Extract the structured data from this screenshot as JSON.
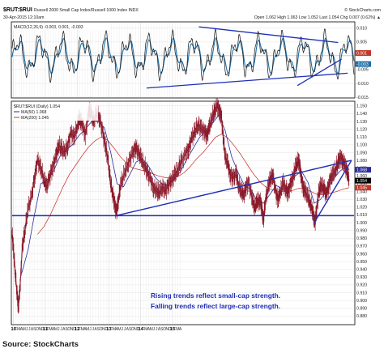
{
  "header": {
    "symbol": "$RUT:$RUI",
    "description": "Russell 2000 Small Cap Index/Russell 1000 Index  INDX",
    "date": "30-Apr-2015 12:10am",
    "brand": "© StockCharts.com",
    "stats": "Open 1.062  High 1.063  Low 1.052  Last 1.054  Chg 0.007 (0.62%) ▲"
  },
  "macd": {
    "legend": "MACD(12,26,9) -0.003, 0.001, -0.003",
    "ylim": [
      -0.015,
      0.012
    ],
    "ticks": [
      {
        "v": 0.01,
        "label": "0.010"
      },
      {
        "v": 0.005,
        "label": "0.005"
      },
      {
        "v": 0.001,
        "label": "0.001"
      },
      {
        "v": -0.005,
        "label": "-0.005"
      },
      {
        "v": -0.01,
        "label": "-0.010"
      },
      {
        "v": -0.015,
        "label": "-0.015"
      }
    ],
    "flags": [
      {
        "v": 0.001,
        "label": "0.001",
        "color": "#c0392b"
      },
      {
        "v": -0.003,
        "label": "-0.003",
        "color": "#1e6fa8"
      }
    ],
    "trendlines": [
      {
        "x1": 5.87,
        "y1": 0.0105,
        "x2": 10.25,
        "y2": 0.0048
      },
      {
        "x1": 4.23,
        "y1": -0.0117,
        "x2": 10.55,
        "y2": -0.0063
      },
      {
        "x1": 8.97,
        "y1": -0.0108,
        "x2": 10.36,
        "y2": -0.0012
      }
    ]
  },
  "price": {
    "legend": "$RUT:$RUI (Daily) 1.054",
    "ma50_legend": "MA(50) 1.068",
    "ma200_legend": "MA(200) 1.045",
    "ylim": [
      0.87,
      1.155
    ],
    "ticks": [
      {
        "v": 1.15,
        "label": "1.150"
      },
      {
        "v": 1.14,
        "label": "1.140"
      },
      {
        "v": 1.13,
        "label": "1.130"
      },
      {
        "v": 1.12,
        "label": "1.120"
      },
      {
        "v": 1.11,
        "label": "1.110"
      },
      {
        "v": 1.1,
        "label": "1.100"
      },
      {
        "v": 1.09,
        "label": "1.090"
      },
      {
        "v": 1.08,
        "label": "1.080"
      },
      {
        "v": 1.07,
        "label": "1.070"
      },
      {
        "v": 1.06,
        "label": "1.060"
      },
      {
        "v": 1.05,
        "label": "1.050"
      },
      {
        "v": 1.04,
        "label": "1.040"
      },
      {
        "v": 1.03,
        "label": "1.030"
      },
      {
        "v": 1.02,
        "label": "1.020"
      },
      {
        "v": 1.01,
        "label": "1.010"
      },
      {
        "v": 1.0,
        "label": "1.000"
      },
      {
        "v": 0.99,
        "label": "0.990"
      },
      {
        "v": 0.98,
        "label": "0.980"
      },
      {
        "v": 0.97,
        "label": "0.970"
      },
      {
        "v": 0.96,
        "label": "0.960"
      },
      {
        "v": 0.95,
        "label": "0.950"
      },
      {
        "v": 0.94,
        "label": "0.940"
      },
      {
        "v": 0.93,
        "label": "0.930"
      },
      {
        "v": 0.92,
        "label": "0.920"
      },
      {
        "v": 0.91,
        "label": "0.910"
      },
      {
        "v": 0.9,
        "label": "0.900"
      },
      {
        "v": 0.89,
        "label": "0.890"
      },
      {
        "v": 0.88,
        "label": "0.880"
      }
    ],
    "flags": [
      {
        "v": 1.068,
        "label": "1.068",
        "color": "#2a2aa0"
      },
      {
        "v": 1.054,
        "label": "1.054",
        "color": "#000000"
      },
      {
        "v": 1.045,
        "label": "1.045",
        "color": "#c0392b"
      }
    ],
    "horizontal_support": 1.009,
    "trendlines": [
      {
        "x1": 3.27,
        "y1": 1.009,
        "x2": 10.67,
        "y2": 1.08
      },
      {
        "x1": 9.5,
        "y1": 1.0,
        "x2": 10.67,
        "y2": 1.08
      }
    ]
  },
  "annotation": {
    "line1": "Rising trends reflect small-cap strength.",
    "line2": "Falling trends reflect large-cap strength."
  },
  "x_axis": {
    "months": [
      "D",
      "10",
      "F",
      "M",
      "A",
      "M",
      "J",
      "J",
      "A",
      "S",
      "O",
      "N",
      "D",
      "11",
      "F",
      "M",
      "A",
      "M",
      "J",
      "J",
      "A",
      "S",
      "O",
      "N",
      "D",
      "12",
      "F",
      "M",
      "A",
      "M",
      "J",
      "J",
      "A",
      "S",
      "O",
      "N",
      "D",
      "13",
      "F",
      "M",
      "A",
      "M",
      "J",
      "J",
      "A",
      "S",
      "O",
      "N",
      "D",
      "14",
      "F",
      "M",
      "A",
      "M",
      "J",
      "J",
      "A",
      "S",
      "O",
      "N",
      "D",
      "15",
      "F",
      "M",
      "A"
    ],
    "years": [
      "10",
      "11",
      "12",
      "13",
      "14",
      "15"
    ],
    "xlim": [
      0,
      10.75
    ]
  },
  "chart_data": {
    "type": "line",
    "title": "$RUT:$RUI Russell 2000 Small Cap Index/Russell 1000 Index",
    "xlabel": "",
    "ylabel": "",
    "x_units": "years since Jan 2010",
    "series": [
      {
        "name": "$RUT:$RUI (Daily)",
        "points": [
          [
            0.0,
            0.985
          ],
          [
            0.05,
            0.96
          ],
          [
            0.1,
            0.935
          ],
          [
            0.17,
            0.9
          ],
          [
            0.2,
            0.893
          ],
          [
            0.26,
            0.925
          ],
          [
            0.32,
            0.968
          ],
          [
            0.4,
            0.99
          ],
          [
            0.5,
            1.018
          ],
          [
            0.62,
            1.035
          ],
          [
            0.72,
            1.063
          ],
          [
            0.8,
            1.08
          ],
          [
            0.9,
            1.07
          ],
          [
            1.0,
            1.056
          ],
          [
            1.08,
            1.045
          ],
          [
            1.18,
            1.06
          ],
          [
            1.28,
            1.072
          ],
          [
            1.38,
            1.085
          ],
          [
            1.46,
            1.1
          ],
          [
            1.55,
            1.095
          ],
          [
            1.65,
            1.09
          ],
          [
            1.75,
            1.1
          ],
          [
            1.85,
            1.115
          ],
          [
            1.95,
            1.11
          ],
          [
            2.05,
            1.125
          ],
          [
            2.12,
            1.132
          ],
          [
            2.2,
            1.128
          ],
          [
            2.3,
            1.112
          ],
          [
            2.4,
            1.14
          ],
          [
            2.46,
            1.146
          ],
          [
            2.55,
            1.128
          ],
          [
            2.65,
            1.14
          ],
          [
            2.75,
            1.135
          ],
          [
            2.85,
            1.115
          ],
          [
            2.93,
            1.1
          ],
          [
            3.0,
            1.085
          ],
          [
            3.08,
            1.055
          ],
          [
            3.15,
            1.04
          ],
          [
            3.22,
            1.025
          ],
          [
            3.28,
            1.013
          ],
          [
            3.34,
            1.03
          ],
          [
            3.42,
            1.05
          ],
          [
            3.55,
            1.065
          ],
          [
            3.66,
            1.078
          ],
          [
            3.78,
            1.088
          ],
          [
            3.88,
            1.097
          ],
          [
            3.96,
            1.092
          ],
          [
            4.05,
            1.082
          ],
          [
            4.15,
            1.075
          ],
          [
            4.25,
            1.065
          ],
          [
            4.35,
            1.055
          ],
          [
            4.45,
            1.045
          ],
          [
            4.55,
            1.04
          ],
          [
            4.62,
            1.038
          ],
          [
            4.72,
            1.046
          ],
          [
            4.82,
            1.04
          ],
          [
            4.92,
            1.05
          ],
          [
            5.02,
            1.055
          ],
          [
            5.12,
            1.061
          ],
          [
            5.22,
            1.07
          ],
          [
            5.32,
            1.078
          ],
          [
            5.45,
            1.088
          ],
          [
            5.55,
            1.096
          ],
          [
            5.65,
            1.108
          ],
          [
            5.75,
            1.118
          ],
          [
            5.85,
            1.126
          ],
          [
            5.95,
            1.12
          ],
          [
            6.05,
            1.118
          ],
          [
            6.12,
            1.112
          ],
          [
            6.2,
            1.122
          ],
          [
            6.28,
            1.135
          ],
          [
            6.36,
            1.142
          ],
          [
            6.45,
            1.15
          ],
          [
            6.52,
            1.144
          ],
          [
            6.58,
            1.136
          ],
          [
            6.64,
            1.108
          ],
          [
            6.7,
            1.085
          ],
          [
            6.78,
            1.075
          ],
          [
            6.86,
            1.062
          ],
          [
            6.95,
            1.058
          ],
          [
            7.05,
            1.062
          ],
          [
            7.12,
            1.048
          ],
          [
            7.2,
            1.04
          ],
          [
            7.28,
            1.035
          ],
          [
            7.36,
            1.048
          ],
          [
            7.44,
            1.05
          ],
          [
            7.55,
            1.032
          ],
          [
            7.62,
            1.02
          ],
          [
            7.7,
            1.025
          ],
          [
            7.78,
            1.03
          ],
          [
            7.85,
            1.02
          ],
          [
            7.9,
            1.002
          ],
          [
            7.96,
            1.028
          ],
          [
            8.05,
            1.045
          ],
          [
            8.12,
            1.056
          ],
          [
            8.2,
            1.062
          ],
          [
            8.28,
            1.04
          ],
          [
            8.36,
            1.03
          ],
          [
            8.44,
            1.04
          ],
          [
            8.52,
            1.05
          ],
          [
            8.6,
            1.044
          ],
          [
            8.68,
            1.038
          ],
          [
            8.76,
            1.05
          ],
          [
            8.84,
            1.06
          ],
          [
            8.92,
            1.072
          ],
          [
            9.0,
            1.08
          ],
          [
            9.05,
            1.072
          ],
          [
            9.1,
            1.055
          ],
          [
            9.16,
            1.045
          ],
          [
            9.22,
            1.04
          ],
          [
            9.3,
            1.032
          ],
          [
            9.38,
            1.025
          ],
          [
            9.46,
            1.012
          ],
          [
            9.52,
            1.0
          ],
          [
            9.58,
            1.02
          ],
          [
            9.65,
            1.04
          ],
          [
            9.72,
            1.048
          ],
          [
            9.8,
            1.045
          ],
          [
            9.88,
            1.035
          ],
          [
            9.95,
            1.048
          ],
          [
            10.02,
            1.058
          ],
          [
            10.1,
            1.062
          ],
          [
            10.18,
            1.07
          ],
          [
            10.26,
            1.078
          ],
          [
            10.33,
            1.084
          ],
          [
            10.4,
            1.08
          ],
          [
            10.47,
            1.072
          ],
          [
            10.54,
            1.065
          ],
          [
            10.6,
            1.054
          ]
        ]
      },
      {
        "name": "MA(50)",
        "points": [
          [
            0.3,
            0.935
          ],
          [
            0.5,
            0.965
          ],
          [
            0.7,
            1.01
          ],
          [
            0.9,
            1.05
          ],
          [
            1.1,
            1.055
          ],
          [
            1.3,
            1.066
          ],
          [
            1.5,
            1.085
          ],
          [
            1.7,
            1.094
          ],
          [
            1.9,
            1.1
          ],
          [
            2.1,
            1.112
          ],
          [
            2.3,
            1.12
          ],
          [
            2.5,
            1.13
          ],
          [
            2.7,
            1.131
          ],
          [
            2.9,
            1.122
          ],
          [
            3.1,
            1.09
          ],
          [
            3.3,
            1.05
          ],
          [
            3.5,
            1.046
          ],
          [
            3.7,
            1.062
          ],
          [
            3.9,
            1.078
          ],
          [
            4.1,
            1.082
          ],
          [
            4.3,
            1.072
          ],
          [
            4.5,
            1.058
          ],
          [
            4.7,
            1.05
          ],
          [
            4.9,
            1.048
          ],
          [
            5.1,
            1.056
          ],
          [
            5.3,
            1.066
          ],
          [
            5.5,
            1.082
          ],
          [
            5.7,
            1.096
          ],
          [
            5.9,
            1.11
          ],
          [
            6.1,
            1.118
          ],
          [
            6.3,
            1.128
          ],
          [
            6.5,
            1.138
          ],
          [
            6.7,
            1.118
          ],
          [
            6.9,
            1.085
          ],
          [
            7.1,
            1.065
          ],
          [
            7.3,
            1.048
          ],
          [
            7.5,
            1.043
          ],
          [
            7.7,
            1.028
          ],
          [
            7.9,
            1.025
          ],
          [
            8.1,
            1.036
          ],
          [
            8.3,
            1.048
          ],
          [
            8.5,
            1.043
          ],
          [
            8.7,
            1.045
          ],
          [
            8.9,
            1.06
          ],
          [
            9.1,
            1.066
          ],
          [
            9.3,
            1.052
          ],
          [
            9.5,
            1.025
          ],
          [
            9.7,
            1.03
          ],
          [
            9.9,
            1.042
          ],
          [
            10.1,
            1.056
          ],
          [
            10.3,
            1.066
          ],
          [
            10.5,
            1.072
          ],
          [
            10.6,
            1.068
          ]
        ]
      },
      {
        "name": "MA(200)",
        "points": [
          [
            0.8,
            0.985
          ],
          [
            1.0,
            0.995
          ],
          [
            1.2,
            1.01
          ],
          [
            1.4,
            1.028
          ],
          [
            1.6,
            1.046
          ],
          [
            1.8,
            1.062
          ],
          [
            2.0,
            1.074
          ],
          [
            2.2,
            1.086
          ],
          [
            2.4,
            1.097
          ],
          [
            2.6,
            1.105
          ],
          [
            2.8,
            1.11
          ],
          [
            3.0,
            1.106
          ],
          [
            3.2,
            1.096
          ],
          [
            3.4,
            1.085
          ],
          [
            3.6,
            1.076
          ],
          [
            3.8,
            1.07
          ],
          [
            4.0,
            1.068
          ],
          [
            4.2,
            1.066
          ],
          [
            4.4,
            1.063
          ],
          [
            4.6,
            1.06
          ],
          [
            4.8,
            1.058
          ],
          [
            5.0,
            1.057
          ],
          [
            5.2,
            1.059
          ],
          [
            5.4,
            1.064
          ],
          [
            5.6,
            1.072
          ],
          [
            5.8,
            1.082
          ],
          [
            6.0,
            1.09
          ],
          [
            6.2,
            1.1
          ],
          [
            6.4,
            1.11
          ],
          [
            6.6,
            1.114
          ],
          [
            6.8,
            1.108
          ],
          [
            7.0,
            1.098
          ],
          [
            7.2,
            1.087
          ],
          [
            7.4,
            1.074
          ],
          [
            7.6,
            1.062
          ],
          [
            7.8,
            1.052
          ],
          [
            8.0,
            1.045
          ],
          [
            8.2,
            1.042
          ],
          [
            8.4,
            1.04
          ],
          [
            8.6,
            1.04
          ],
          [
            8.8,
            1.041
          ],
          [
            9.0,
            1.044
          ],
          [
            9.2,
            1.044
          ],
          [
            9.4,
            1.04
          ],
          [
            9.6,
            1.036
          ],
          [
            9.8,
            1.036
          ],
          [
            10.0,
            1.038
          ],
          [
            10.2,
            1.04
          ],
          [
            10.4,
            1.043
          ],
          [
            10.6,
            1.045
          ]
        ]
      }
    ],
    "ylim": [
      0.87,
      1.155
    ],
    "xlim": [
      0,
      10.75
    ],
    "grid": true,
    "legend": "top-left"
  }
}
